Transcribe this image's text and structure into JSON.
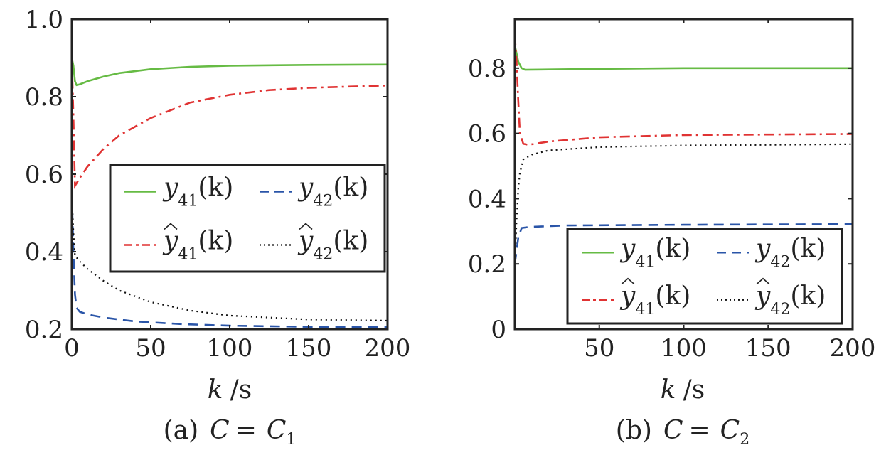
{
  "chart_data": [
    {
      "type": "line",
      "caption": "(a)  C =  C1",
      "caption_parts": {
        "prefix": "(a)",
        "var": "C",
        "eq": "=",
        "rhs": "C",
        "rhs_sub": "1"
      },
      "xlabel": "k /s",
      "xlabel_parts": {
        "var": "k",
        "unit": "/s"
      },
      "xlim": [
        0,
        200
      ],
      "ylim": [
        0.2,
        1.0
      ],
      "xticks": [
        "0",
        "50",
        "100",
        "150",
        "200"
      ],
      "xtick_values": [
        0,
        50,
        100,
        150,
        200
      ],
      "yticks": [
        "0.2",
        "0.4",
        "0.6",
        "0.8",
        "1.0"
      ],
      "ytick_values": [
        0.2,
        0.4,
        0.6,
        0.8,
        1.0
      ],
      "grid": false,
      "legend_placement": "center-right",
      "series": [
        {
          "name": "y41(k)",
          "symbol": "y",
          "hat": false,
          "sub": "41",
          "arg": "(k)",
          "color": "#66bb44",
          "style": "solid",
          "points": [
            [
              0,
              0.9
            ],
            [
              1,
              0.88
            ],
            [
              2,
              0.84
            ],
            [
              3,
              0.83
            ],
            [
              5,
              0.832
            ],
            [
              10,
              0.84
            ],
            [
              20,
              0.852
            ],
            [
              30,
              0.861
            ],
            [
              50,
              0.871
            ],
            [
              75,
              0.877
            ],
            [
              100,
              0.88
            ],
            [
              150,
              0.882
            ],
            [
              200,
              0.883
            ]
          ]
        },
        {
          "name": "y42(k)",
          "symbol": "y",
          "hat": false,
          "sub": "42",
          "arg": "(k)",
          "color": "#2a55a8",
          "style": "dashed",
          "points": [
            [
              0,
              0.55
            ],
            [
              1,
              0.4
            ],
            [
              2,
              0.29
            ],
            [
              3,
              0.255
            ],
            [
              5,
              0.245
            ],
            [
              10,
              0.238
            ],
            [
              20,
              0.23
            ],
            [
              40,
              0.22
            ],
            [
              70,
              0.213
            ],
            [
              100,
              0.209
            ],
            [
              150,
              0.206
            ],
            [
              200,
              0.205
            ]
          ]
        },
        {
          "name": "ŷ41(k)",
          "symbol": "y",
          "hat": true,
          "sub": "41",
          "arg": "(k)",
          "color": "#e03333",
          "style": "dashdot",
          "points": [
            [
              0,
              0.9
            ],
            [
              1,
              0.75
            ],
            [
              2,
              0.57
            ],
            [
              5,
              0.59
            ],
            [
              10,
              0.62
            ],
            [
              20,
              0.665
            ],
            [
              30,
              0.7
            ],
            [
              50,
              0.745
            ],
            [
              75,
              0.785
            ],
            [
              100,
              0.805
            ],
            [
              125,
              0.817
            ],
            [
              150,
              0.823
            ],
            [
              200,
              0.829
            ]
          ]
        },
        {
          "name": "ŷ42(k)",
          "symbol": "y",
          "hat": true,
          "sub": "42",
          "arg": "(k)",
          "color": "#111111",
          "style": "dotted",
          "points": [
            [
              0,
              0.55
            ],
            [
              1,
              0.45
            ],
            [
              2,
              0.39
            ],
            [
              5,
              0.375
            ],
            [
              10,
              0.355
            ],
            [
              20,
              0.325
            ],
            [
              30,
              0.3
            ],
            [
              50,
              0.27
            ],
            [
              75,
              0.248
            ],
            [
              100,
              0.235
            ],
            [
              150,
              0.225
            ],
            [
              200,
              0.222
            ]
          ]
        }
      ]
    },
    {
      "type": "line",
      "caption": "(b)  C =  C2",
      "caption_parts": {
        "prefix": "(b)",
        "var": "C",
        "eq": "=",
        "rhs": "C",
        "rhs_sub": "2"
      },
      "xlabel": "k /s",
      "xlabel_parts": {
        "var": "k",
        "unit": "/s"
      },
      "xlim": [
        0,
        200
      ],
      "ylim": [
        0,
        0.95
      ],
      "xticks": [
        "50",
        "100",
        "150",
        "200"
      ],
      "xtick_values": [
        50,
        100,
        150,
        200
      ],
      "yticks": [
        "0",
        "0.2",
        "0.4",
        "0.6",
        "0.8"
      ],
      "ytick_values": [
        0,
        0.2,
        0.4,
        0.6,
        0.8
      ],
      "grid": false,
      "legend_placement": "bottom-right",
      "series": [
        {
          "name": "y41(k)",
          "symbol": "y",
          "hat": false,
          "sub": "41",
          "arg": "(k)",
          "color": "#66bb44",
          "style": "solid",
          "points": [
            [
              0,
              0.87
            ],
            [
              2,
              0.82
            ],
            [
              4,
              0.8
            ],
            [
              6,
              0.795
            ],
            [
              20,
              0.796
            ],
            [
              50,
              0.798
            ],
            [
              100,
              0.8
            ],
            [
              200,
              0.8
            ]
          ]
        },
        {
          "name": "y42(k)",
          "symbol": "y",
          "hat": false,
          "sub": "42",
          "arg": "(k)",
          "color": "#2a55a8",
          "style": "dashed",
          "points": [
            [
              0,
              0.2
            ],
            [
              1,
              0.24
            ],
            [
              2,
              0.28
            ],
            [
              4,
              0.31
            ],
            [
              8,
              0.313
            ],
            [
              30,
              0.318
            ],
            [
              100,
              0.32
            ],
            [
              200,
              0.322
            ]
          ]
        },
        {
          "name": "ŷ41(k)",
          "symbol": "y",
          "hat": true,
          "sub": "41",
          "arg": "(k)",
          "color": "#e03333",
          "style": "dashdot",
          "points": [
            [
              0,
              0.9
            ],
            [
              1,
              0.82
            ],
            [
              2,
              0.7
            ],
            [
              3,
              0.6
            ],
            [
              5,
              0.568
            ],
            [
              8,
              0.565
            ],
            [
              20,
              0.575
            ],
            [
              50,
              0.588
            ],
            [
              100,
              0.595
            ],
            [
              200,
              0.598
            ]
          ]
        },
        {
          "name": "ŷ42(k)",
          "symbol": "y",
          "hat": true,
          "sub": "42",
          "arg": "(k)",
          "color": "#111111",
          "style": "dotted",
          "points": [
            [
              0,
              0.2
            ],
            [
              1,
              0.33
            ],
            [
              2,
              0.43
            ],
            [
              3,
              0.48
            ],
            [
              5,
              0.52
            ],
            [
              10,
              0.535
            ],
            [
              20,
              0.548
            ],
            [
              50,
              0.558
            ],
            [
              100,
              0.563
            ],
            [
              200,
              0.567
            ]
          ]
        }
      ]
    }
  ]
}
